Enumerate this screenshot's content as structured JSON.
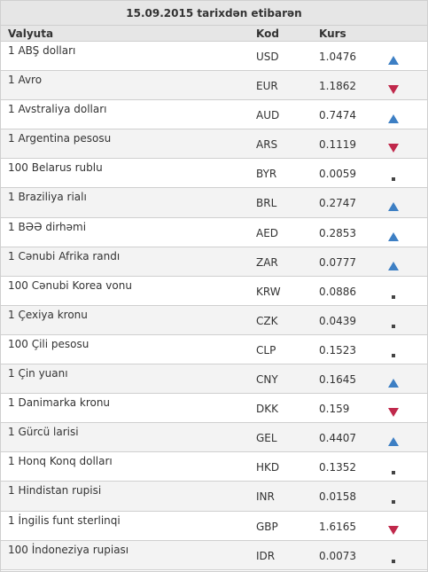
{
  "header": {
    "title": "15.09.2015 tarixdən etibarən",
    "col_currency": "Valyuta",
    "col_code": "Kod",
    "col_rate": "Kurs"
  },
  "colors": {
    "up": "#3d7fc4",
    "down": "#c0284b",
    "flat": "#444444"
  },
  "rows": [
    {
      "name": "1 ABŞ dolları",
      "code": "USD",
      "rate": "1.0476",
      "trend": "up"
    },
    {
      "name": "1 Avro",
      "code": "EUR",
      "rate": "1.1862",
      "trend": "down"
    },
    {
      "name": "1 Avstraliya dolları",
      "code": "AUD",
      "rate": "0.7474",
      "trend": "up"
    },
    {
      "name": "1 Argentina pesosu",
      "code": "ARS",
      "rate": "0.1119",
      "trend": "down"
    },
    {
      "name": "100 Belarus rublu",
      "code": "BYR",
      "rate": "0.0059",
      "trend": "flat"
    },
    {
      "name": "1 Braziliya rialı",
      "code": "BRL",
      "rate": "0.2747",
      "trend": "up"
    },
    {
      "name": "1 BƏƏ dirhəmi",
      "code": "AED",
      "rate": "0.2853",
      "trend": "up"
    },
    {
      "name": "1 Cənubi Afrika randı",
      "code": "ZAR",
      "rate": "0.0777",
      "trend": "up"
    },
    {
      "name": "100 Cənubi Korea vonu",
      "code": "KRW",
      "rate": "0.0886",
      "trend": "flat"
    },
    {
      "name": "1 Çexiya kronu",
      "code": "CZK",
      "rate": "0.0439",
      "trend": "flat"
    },
    {
      "name": "100 Çili pesosu",
      "code": "CLP",
      "rate": "0.1523",
      "trend": "flat"
    },
    {
      "name": "1 Çin yuanı",
      "code": "CNY",
      "rate": "0.1645",
      "trend": "up"
    },
    {
      "name": "1 Danimarka kronu",
      "code": "DKK",
      "rate": "0.159",
      "trend": "down"
    },
    {
      "name": "1 Gürcü larisi",
      "code": "GEL",
      "rate": "0.4407",
      "trend": "up"
    },
    {
      "name": "1 Honq Konq dolları",
      "code": "HKD",
      "rate": "0.1352",
      "trend": "flat"
    },
    {
      "name": "1 Hindistan rupisi",
      "code": "INR",
      "rate": "0.0158",
      "trend": "flat"
    },
    {
      "name": "1 İngilis funt sterlinqi",
      "code": "GBP",
      "rate": "1.6165",
      "trend": "down"
    },
    {
      "name": "100 İndoneziya rupiası",
      "code": "IDR",
      "rate": "0.0073",
      "trend": "flat"
    }
  ]
}
